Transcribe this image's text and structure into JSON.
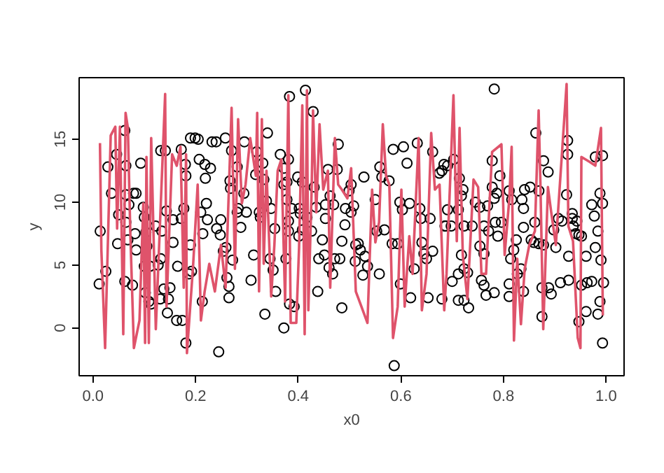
{
  "chart_data": {
    "type": "scatter",
    "xlabel": "x0",
    "ylabel": "y",
    "xlim": [
      -0.027,
      1.035
    ],
    "ylim": [
      -3.8,
      19.9
    ],
    "xticks": [
      {
        "value": 0,
        "label": "0.0"
      },
      0.2,
      0.4,
      0.6,
      0.8,
      {
        "value": 1,
        "label": "1.0"
      }
    ],
    "yticks": [
      0,
      5,
      10,
      15
    ],
    "series": [
      {
        "marker": "circle",
        "color": "#000000",
        "x": [
          0.014,
          0.012,
          0.025,
          0.029,
          0.036,
          0.046,
          0.05,
          0.048,
          0.062,
          0.064,
          0.062,
          0.064,
          0.07,
          0.064,
          0.068,
          0.077,
          0.079,
          0.084,
          0.082,
          0.084,
          0.093,
          0.098,
          0.1,
          0.1,
          0.102,
          0.103,
          0.105,
          0.109,
          0.111,
          0.113,
          0.122,
          0.127,
          0.131,
          0.132,
          0.132,
          0.134,
          0.138,
          0.141,
          0.143,
          0.145,
          0.147,
          0.15,
          0.156,
          0.156,
          0.163,
          0.165,
          0.172,
          0.172,
          0.174,
          0.177,
          0.18,
          0.181,
          0.181,
          0.187,
          0.19,
          0.19,
          0.192,
          0.199,
          0.205,
          0.207,
          0.21,
          0.213,
          0.214,
          0.218,
          0.219,
          0.221,
          0.223,
          0.229,
          0.232,
          0.24,
          0.241,
          0.245,
          0.248,
          0.249,
          0.254,
          0.258,
          0.259,
          0.261,
          0.265,
          0.265,
          0.267,
          0.268,
          0.27,
          0.272,
          0.281,
          0.281,
          0.283,
          0.288,
          0.294,
          0.295,
          0.299,
          0.308,
          0.313,
          0.317,
          0.319,
          0.331,
          0.34,
          0.333,
          0.338,
          0.324,
          0.326,
          0.347,
          0.354,
          0.345,
          0.351,
          0.356,
          0.335,
          0.365,
          0.372,
          0.372,
          0.378,
          0.381,
          0.383,
          0.378,
          0.387,
          0.381,
          0.381,
          0.376,
          0.372,
          0.383,
          0.392,
          0.399,
          0.402,
          0.404,
          0.401,
          0.408,
          0.414,
          0.408,
          0.417,
          0.426,
          0.429,
          0.431,
          0.435,
          0.438,
          0.44,
          0.447,
          0.451,
          0.453,
          0.453,
          0.458,
          0.46,
          0.462,
          0.467,
          0.469,
          0.471,
          0.478,
          0.476,
          0.481,
          0.485,
          0.485,
          0.492,
          0.491,
          0.499,
          0.503,
          0.503,
          0.508,
          0.511,
          0.512,
          0.517,
          0.521,
          0.526,
          0.528,
          0.53,
          0.535,
          0.55,
          0.553,
          0.558,
          0.559,
          0.563,
          0.568,
          0.577,
          0.583,
          0.585,
          0.594,
          0.599,
          0.598,
          0.603,
          0.605,
          0.612,
          0.617,
          0.619,
          0.626,
          0.632,
          0.637,
          0.639,
          0.641,
          0.645,
          0.65,
          0.653,
          0.657,
          0.662,
          0.662,
          0.675,
          0.68,
          0.68,
          0.684,
          0.686,
          0.587,
          0.691,
          0.703,
          0.714,
          0.721,
          0.718,
          0.691,
          0.712,
          0.687,
          0.698,
          0.723,
          0.739,
          0.718,
          0.723,
          0.73,
          0.7,
          0.712,
          0.712,
          0.723,
          0.732,
          0.745,
          0.754,
          0.769,
          0.762,
          0.771,
          0.754,
          0.762,
          0.757,
          0.762,
          0.766,
          0.778,
          0.778,
          0.782,
          0.787,
          0.793,
          0.784,
          0.796,
          0.789,
          0.782,
          0.782,
          0.811,
          0.816,
          0.825,
          0.82,
          0.839,
          0.839,
          0.836,
          0.841,
          0.834,
          0.827,
          0.811,
          0.814,
          0.839,
          0.811,
          0.852,
          0.863,
          0.869,
          0.878,
          0.887,
          0.854,
          0.859,
          0.869,
          0.878,
          0.861,
          0.875,
          0.888,
          0.893,
          0.898,
          0.902,
          0.907,
          0.914,
          0.911,
          0.875,
          0.925,
          0.925,
          0.923,
          0.927,
          0.927,
          0.934,
          0.936,
          0.941,
          0.947,
          0.952,
          0.943,
          0.934,
          0.961,
          0.972,
          0.977,
          0.984,
          0.979,
          0.952,
          0.963,
          0.972,
          0.988,
          0.961,
          0.947,
          0.979,
          0.993,
          0.988,
          0.993,
          0.99,
          0.995,
          0.984,
          0.993
        ],
        "values": [
          7.7,
          3.5,
          4.5,
          12.8,
          10.7,
          13.8,
          9.0,
          6.7,
          3.7,
          12.9,
          15.7,
          10.6,
          9.8,
          8.4,
          7.0,
          3.4,
          10.7,
          10.7,
          7.5,
          6.2,
          13.1,
          9.6,
          8.8,
          4.9,
          2.8,
          7.6,
          6.5,
          2.1,
          4.9,
          1.9,
          8.1,
          5.0,
          2.3,
          14.1,
          5.5,
          7.7,
          3.1,
          14.1,
          9.3,
          1.2,
          2.3,
          3.2,
          8.6,
          6.8,
          0.6,
          4.9,
          14.2,
          8.7,
          0.6,
          9.5,
          13.0,
          12.1,
          -1.2,
          4.3,
          6.6,
          15.1,
          4.5,
          15.1,
          15.0,
          13.4,
          9.2,
          2.1,
          7.5,
          13.0,
          11.9,
          9.9,
          8.6,
          12.7,
          14.8,
          14.8,
          7.9,
          -1.9,
          7.4,
          8.6,
          6.1,
          15.1,
          6.4,
          4.0,
          3.3,
          2.4,
          11.7,
          11.1,
          14.1,
          5.4,
          12.8,
          9.2,
          9.5,
          8.0,
          10.7,
          14.8,
          9.2,
          3.8,
          5.8,
          12.2,
          14.0,
          13.1,
          15.5,
          11.8,
          10.1,
          9.2,
          8.8,
          9.5,
          7.9,
          5.5,
          4.6,
          2.9,
          1.1,
          13.8,
          12.7,
          11.4,
          11.6,
          13.4,
          18.4,
          10.2,
          9.5,
          8.5,
          7.7,
          5.5,
          0.0,
          1.9,
          1.7,
          12.0,
          9.5,
          9.1,
          7.3,
          11.6,
          18.9,
          7.8,
          8.8,
          7.7,
          17.2,
          11.2,
          9.6,
          2.9,
          5.5,
          7.0,
          5.8,
          8.7,
          9.8,
          12.6,
          4.8,
          10.5,
          4.3,
          9.8,
          5.5,
          14.6,
          12.6,
          5.5,
          1.6,
          6.9,
          9.5,
          8.2,
          10.9,
          11.4,
          9.2,
          9.7,
          5.3,
          6.6,
          6.7,
          6.2,
          4.2,
          12.0,
          5.7,
          4.9,
          10.2,
          7.7,
          4.3,
          12.8,
          12.0,
          7.8,
          11.7,
          6.7,
          14.2,
          6.7,
          3.5,
          10.0,
          9.4,
          14.4,
          13.1,
          9.9,
          2.4,
          4.7,
          14.7,
          9.5,
          8.7,
          6.8,
          5.9,
          5.5,
          2.4,
          8.7,
          14.0,
          6.1,
          12.3,
          12.5,
          2.3,
          13.0,
          8.1,
          -3.0,
          12.9,
          13.4,
          11.9,
          11.0,
          10.5,
          9.4,
          9.4,
          8.1,
          8.1,
          8.1,
          8.1,
          5.8,
          4.7,
          4.4,
          3.7,
          4.3,
          2.2,
          2.2,
          1.6,
          10.0,
          9.6,
          9.7,
          8.1,
          7.7,
          6.5,
          5.9,
          3.8,
          3.4,
          2.6,
          13.3,
          11.2,
          10.3,
          10.7,
          12.1,
          8.4,
          8.4,
          7.3,
          2.8,
          19.0,
          10.9,
          10.2,
          7.0,
          6.2,
          9.5,
          8.0,
          10.2,
          11.0,
          4.7,
          4.3,
          3.5,
          5.5,
          2.9,
          2.5,
          11.2,
          15.5,
          10.9,
          13.3,
          12.4,
          7.0,
          6.8,
          6.7,
          6.6,
          8.4,
          3.2,
          3.2,
          2.7,
          7.8,
          6.4,
          8.7,
          8.5,
          3.6,
          0.9,
          14.9,
          13.8,
          10.6,
          5.7,
          3.8,
          9.1,
          8.1,
          7.5,
          7.4,
          7.3,
          8.5,
          8.7,
          5.7,
          9.8,
          8.9,
          7.7,
          6.4,
          3.4,
          3.6,
          3.7,
          2.1,
          1.3,
          0.5,
          13.6,
          13.7,
          10.7,
          9.9,
          5.4,
          3.6,
          1.1,
          -1.2
        ]
      },
      {
        "type": "line",
        "line_style": "solid",
        "color": "#df536b",
        "x": [
          0.0136,
          0.0163,
          0.0236,
          0.0345,
          0.0435,
          0.047,
          0.0525,
          0.059,
          0.0635,
          0.068,
          0.0726,
          0.0797,
          0.0906,
          0.098,
          0.1015,
          0.1042,
          0.1088,
          0.1134,
          0.1224,
          0.1406,
          0.1433,
          0.1542,
          0.1632,
          0.1705,
          0.1768,
          0.1814,
          0.1831,
          0.195,
          0.204,
          0.2103,
          0.2176,
          0.2266,
          0.2375,
          0.2494,
          0.2584,
          0.2701,
          0.2766,
          0.2828,
          0.2901,
          0.2973,
          0.3064,
          0.3174,
          0.32,
          0.3236,
          0.3291,
          0.3327,
          0.3381,
          0.3473,
          0.3535,
          0.3599,
          0.3671,
          0.3744,
          0.3807,
          0.3853,
          0.3962,
          0.4016,
          0.4079,
          0.4125,
          0.417,
          0.4197,
          0.4261,
          0.4288,
          0.4351,
          0.4415,
          0.4487,
          0.4578,
          0.4623,
          0.4714,
          0.4778,
          0.485,
          0.4958,
          0.5031,
          0.5122,
          0.5231,
          0.5349,
          0.5439,
          0.5503,
          0.5575,
          0.5648,
          0.5711,
          0.5775,
          0.5847,
          0.5938,
          0.601,
          0.6074,
          0.6164,
          0.6228,
          0.6346,
          0.6409,
          0.65,
          0.6591,
          0.6663,
          0.6754,
          0.6845,
          0.689,
          0.7025,
          0.709,
          0.7144,
          0.7207,
          0.7297,
          0.7416,
          0.7506,
          0.757,
          0.766,
          0.7778,
          0.796,
          0.8023,
          0.8114,
          0.8159,
          0.8204,
          0.8268,
          0.834,
          0.8413,
          0.8503,
          0.8612,
          0.8685,
          0.872,
          0.8775,
          0.8866,
          0.893,
          0.902,
          0.923,
          0.9265,
          0.9355,
          0.9447,
          0.95,
          0.9518,
          0.9682,
          0.979,
          0.99,
          0.9936
        ],
        "values": [
          14.7,
          6.2,
          -1.6,
          15.3,
          16.0,
          7.9,
          16.0,
          -0.5,
          17.1,
          15.9,
          7.7,
          -1.6,
          0.6,
          9.9,
          -1.2,
          13.6,
          -1.2,
          15.1,
          -0.1,
          18.6,
          1.7,
          13.8,
          12.9,
          14.4,
          3.2,
          13.8,
          -2.0,
          4.9,
          11.4,
          0.6,
          2.9,
          5.1,
          2.9,
          6.6,
          3.2,
          17.5,
          4.7,
          16.6,
          9.9,
          11.4,
          15.1,
          12.1,
          17.1,
          2.9,
          16.6,
          5.1,
          12.5,
          2.5,
          6.6,
          12.5,
          13.4,
          2.1,
          18.5,
          0.4,
          0.4,
          6.4,
          17.7,
          -0.5,
          18.9,
          1.4,
          11.0,
          17.3,
          9.2,
          16.2,
          11.0,
          12.5,
          3.2,
          15.1,
          11.4,
          11.0,
          10.3,
          12.7,
          2.9,
          1.7,
          0.4,
          11.0,
          6.8,
          8.4,
          16.2,
          12.1,
          11.4,
          -0.8,
          1.7,
          11.0,
          1.7,
          7.3,
          4.3,
          15.1,
          1.4,
          4.3,
          15.5,
          11.0,
          11.4,
          1.4,
          4.3,
          18.5,
          6.9,
          15.9,
          5.8,
          2.3,
          11.8,
          11.2,
          4.3,
          4.3,
          14.0,
          14.6,
          5.8,
          10.3,
          14.4,
          -1.0,
          5.5,
          0.3,
          4.7,
          6.6,
          7.7,
          17.3,
          11.4,
          -0.1,
          11.2,
          9.2,
          6.6,
          19.4,
          8.1,
          6.9,
          -0.8,
          -1.6,
          13.6,
          13.2,
          12.9,
          15.9,
          1.0
        ]
      }
    ]
  }
}
